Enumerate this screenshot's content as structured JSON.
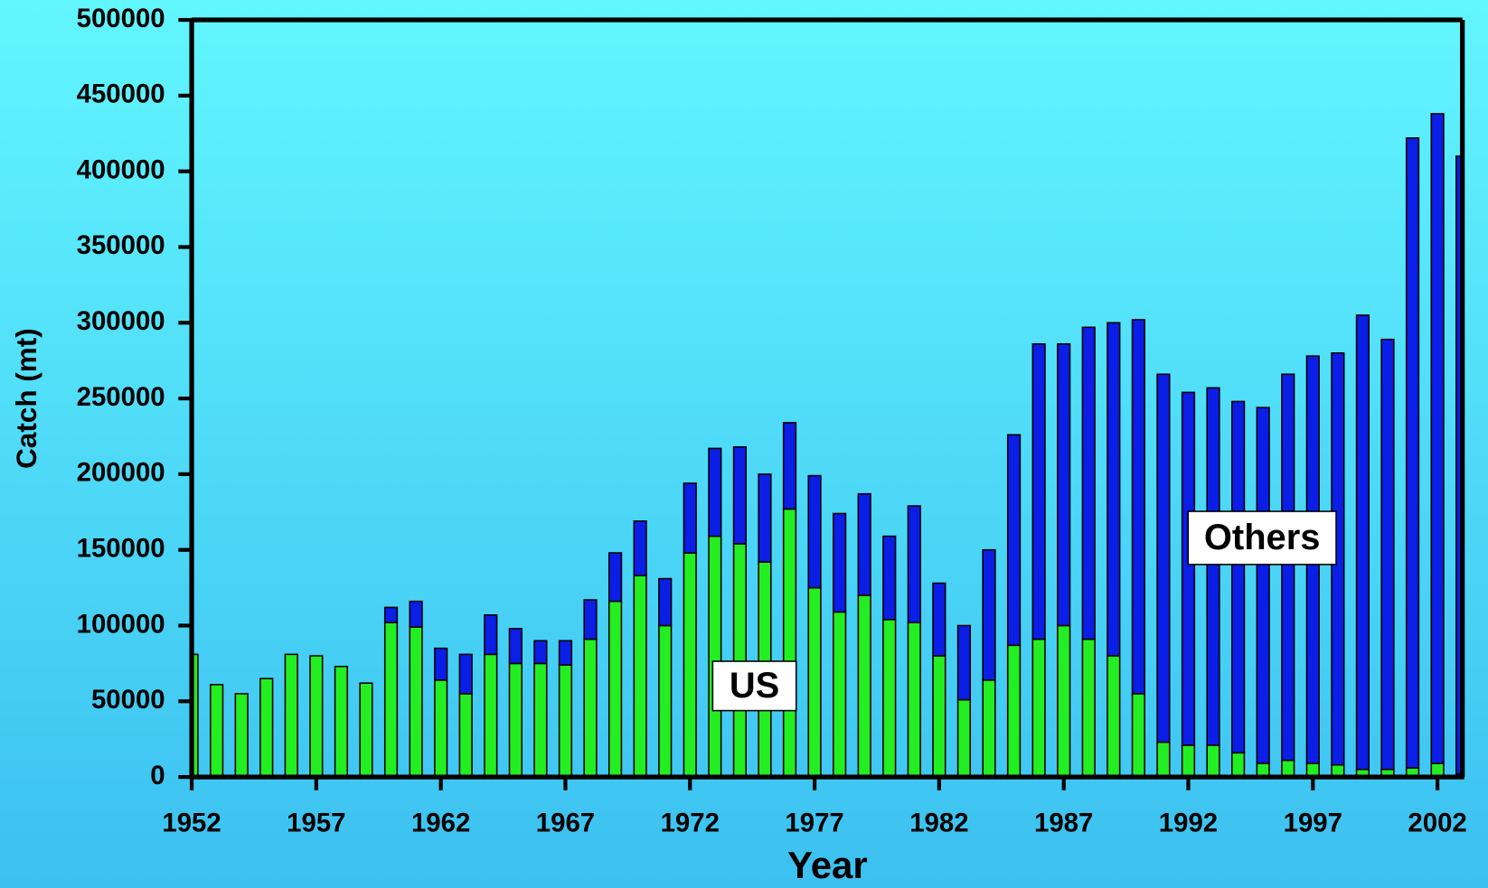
{
  "chart_data": {
    "type": "stacked_bar",
    "x_label": "Year",
    "y_label": "Catch (mt)",
    "x": [
      1952,
      1953,
      1954,
      1955,
      1956,
      1957,
      1958,
      1959,
      1960,
      1961,
      1962,
      1963,
      1964,
      1965,
      1966,
      1967,
      1968,
      1969,
      1970,
      1971,
      1972,
      1973,
      1974,
      1975,
      1976,
      1977,
      1978,
      1979,
      1980,
      1981,
      1982,
      1983,
      1984,
      1985,
      1986,
      1987,
      1988,
      1989,
      1990,
      1991,
      1992,
      1993,
      1994,
      1995,
      1996,
      1997,
      1998,
      1999,
      2000,
      2001,
      2002,
      2003
    ],
    "series": [
      {
        "name": "US",
        "color": "#22ee22",
        "values": [
          81000,
          61000,
          55000,
          65000,
          81000,
          80000,
          73000,
          62000,
          102000,
          99000,
          64000,
          55000,
          81000,
          75000,
          75000,
          74000,
          91000,
          116000,
          133000,
          100000,
          148000,
          159000,
          154000,
          142000,
          177000,
          125000,
          109000,
          120000,
          104000,
          102000,
          80000,
          51000,
          64000,
          87000,
          91000,
          100000,
          91000,
          80000,
          55000,
          23000,
          21000,
          21000,
          16000,
          9000,
          11000,
          9000,
          8000,
          5000,
          5000,
          6000,
          9000,
          2000
        ]
      },
      {
        "name": "Others",
        "color": "#0a1ee6",
        "values": [
          0,
          0,
          0,
          0,
          0,
          0,
          0,
          0,
          10000,
          17000,
          21000,
          26000,
          26000,
          23000,
          15000,
          16000,
          26000,
          32000,
          36000,
          31000,
          46000,
          58000,
          64000,
          58000,
          57000,
          74000,
          65000,
          67000,
          55000,
          77000,
          48000,
          49000,
          86000,
          139000,
          195000,
          186000,
          206000,
          220000,
          247000,
          243000,
          233000,
          236000,
          232000,
          235000,
          255000,
          269000,
          272000,
          300000,
          284000,
          416000,
          429000,
          408000
        ]
      }
    ],
    "xlim": [
      1952,
      2003
    ],
    "xticks": [
      1952,
      1957,
      1962,
      1967,
      1972,
      1977,
      1982,
      1987,
      1992,
      1997,
      2002
    ],
    "ylim": [
      0,
      500000
    ],
    "yticks": [
      0,
      50000,
      100000,
      150000,
      200000,
      250000,
      300000,
      350000,
      400000,
      450000,
      500000
    ]
  }
}
